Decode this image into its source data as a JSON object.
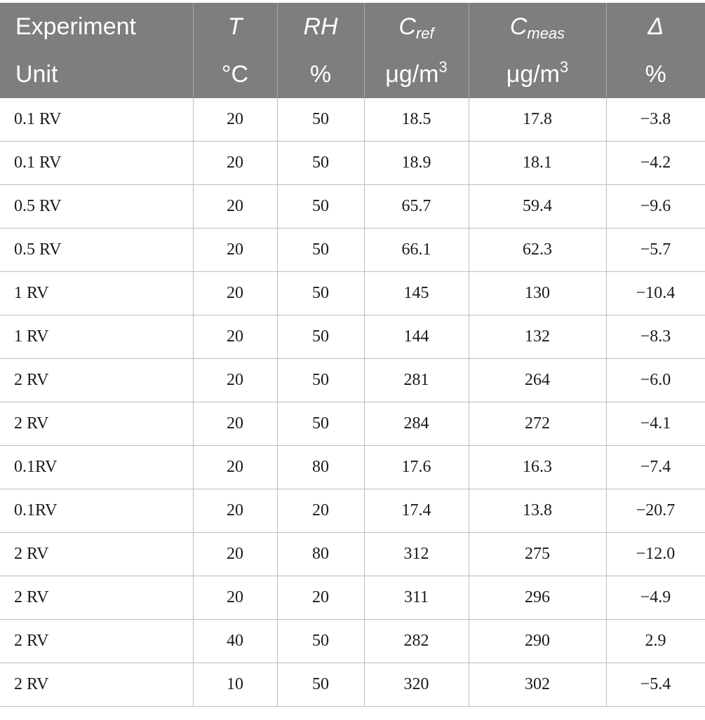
{
  "header": {
    "row1": {
      "experiment": "Experiment",
      "t": "T",
      "rh": "RH",
      "cref_base": "C",
      "cref_sub": "ref",
      "cmeas_base": "C",
      "cmeas_sub": "meas",
      "delta": "Δ"
    },
    "row2": {
      "unit": "Unit",
      "t_unit": "°C",
      "rh_unit": "%",
      "cref_unit_base": "μg/m",
      "cref_unit_sup": "3",
      "cmeas_unit_base": "μg/m",
      "cmeas_unit_sup": "3",
      "delta_unit": "%"
    }
  },
  "rows": [
    [
      "0.1 RV",
      "20",
      "50",
      "18.5",
      "17.8",
      "−3.8"
    ],
    [
      "0.1 RV",
      "20",
      "50",
      "18.9",
      "18.1",
      "−4.2"
    ],
    [
      "0.5 RV",
      "20",
      "50",
      "65.7",
      "59.4",
      "−9.6"
    ],
    [
      "0.5 RV",
      "20",
      "50",
      "66.1",
      "62.3",
      "−5.7"
    ],
    [
      "1 RV",
      "20",
      "50",
      "145",
      "130",
      "−10.4"
    ],
    [
      "1 RV",
      "20",
      "50",
      "144",
      "132",
      "−8.3"
    ],
    [
      "2 RV",
      "20",
      "50",
      "281",
      "264",
      "−6.0"
    ],
    [
      "2 RV",
      "20",
      "50",
      "284",
      "272",
      "−4.1"
    ],
    [
      "0.1RV",
      "20",
      "80",
      "17.6",
      "16.3",
      "−7.4"
    ],
    [
      "0.1RV",
      "20",
      "20",
      "17.4",
      "13.8",
      "−20.7"
    ],
    [
      "2 RV",
      "20",
      "80",
      "312",
      "275",
      "−12.0"
    ],
    [
      "2 RV",
      "20",
      "20",
      "311",
      "296",
      "−4.9"
    ],
    [
      "2 RV",
      "40",
      "50",
      "282",
      "290",
      "2.9"
    ],
    [
      "2 RV",
      "10",
      "50",
      "320",
      "302",
      "−5.4"
    ]
  ]
}
